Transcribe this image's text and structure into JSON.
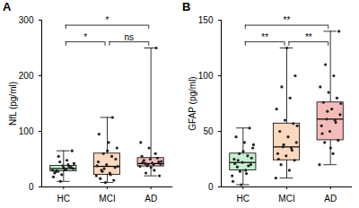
{
  "chart_data": [
    {
      "type": "box",
      "title": "A",
      "ylabel": "NfL (pg/ml)",
      "categories": [
        "HC",
        "MCI",
        "AD"
      ],
      "colors": [
        "#c6efce",
        "#fcd9bd",
        "#f4bcb8"
      ],
      "ylim": [
        0,
        300
      ],
      "yticks": [
        0,
        100,
        200,
        300
      ],
      "boxes": [
        {
          "min": 10,
          "q1": 28,
          "median": 33,
          "q3": 38,
          "max": 65
        },
        {
          "min": 8,
          "q1": 22,
          "median": 37,
          "q3": 60,
          "max": 125
        },
        {
          "min": 20,
          "q1": 37,
          "median": 42,
          "q3": 52,
          "max": 250
        }
      ],
      "points": [
        [
          30,
          32,
          28,
          35,
          38,
          25,
          40,
          45,
          33,
          31,
          29,
          36,
          22,
          18,
          48,
          55,
          65,
          34,
          27,
          37,
          10,
          42
        ],
        [
          20,
          25,
          30,
          35,
          40,
          45,
          55,
          60,
          70,
          80,
          15,
          12,
          8,
          38,
          22,
          28,
          50,
          65,
          95,
          125,
          33,
          37
        ],
        [
          37,
          40,
          42,
          45,
          50,
          55,
          60,
          38,
          41,
          43,
          48,
          52,
          70,
          80,
          30,
          25,
          20,
          35,
          44,
          250,
          39,
          46
        ]
      ],
      "annotations": [
        {
          "from": "HC",
          "to": "MCI",
          "label": "*"
        },
        {
          "from": "HC",
          "to": "AD",
          "label": "*"
        },
        {
          "from": "MCI",
          "to": "AD",
          "label": "ns"
        }
      ]
    },
    {
      "type": "box",
      "title": "B",
      "ylabel": "GFAP (pg/ml)",
      "categories": [
        "HC",
        "MCI",
        "AD"
      ],
      "colors": [
        "#c6efce",
        "#fcd9bd",
        "#f4bcb8"
      ],
      "ylim": [
        0,
        150
      ],
      "yticks": [
        0,
        50,
        100,
        150
      ],
      "boxes": [
        {
          "min": 2,
          "q1": 15,
          "median": 22,
          "q3": 30,
          "max": 53
        },
        {
          "min": 8,
          "q1": 24,
          "median": 36,
          "q3": 57,
          "max": 125
        },
        {
          "min": 20,
          "q1": 42,
          "median": 61,
          "q3": 76,
          "max": 140
        }
      ],
      "points": [
        [
          10,
          15,
          18,
          20,
          22,
          25,
          28,
          30,
          35,
          40,
          45,
          53,
          2,
          5,
          12,
          24,
          26,
          32,
          21,
          19,
          14,
          38
        ],
        [
          8,
          15,
          20,
          24,
          28,
          30,
          35,
          36,
          40,
          45,
          50,
          57,
          60,
          70,
          80,
          90,
          100,
          125,
          25,
          33,
          38,
          55
        ],
        [
          20,
          30,
          40,
          42,
          50,
          55,
          60,
          61,
          65,
          70,
          76,
          80,
          85,
          90,
          100,
          110,
          140,
          35,
          48,
          58,
          68,
          75
        ]
      ],
      "annotations": [
        {
          "from": "HC",
          "to": "MCI",
          "label": "**"
        },
        {
          "from": "HC",
          "to": "AD",
          "label": "**"
        },
        {
          "from": "MCI",
          "to": "AD",
          "label": "**"
        }
      ]
    }
  ]
}
